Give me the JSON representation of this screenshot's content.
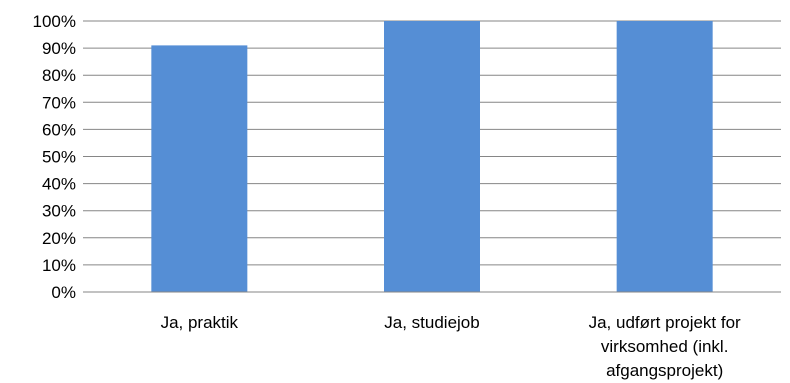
{
  "chart_data": {
    "type": "bar",
    "categories": [
      [
        "Ja, praktik"
      ],
      [
        "Ja, studiejob"
      ],
      [
        "Ja, udført projekt for",
        "virksomhed (inkl.",
        "afgangsprojekt)"
      ]
    ],
    "values": [
      91,
      100,
      100
    ],
    "ylim": [
      0,
      100
    ],
    "yticks": [
      "0%",
      "10%",
      "20%",
      "30%",
      "40%",
      "50%",
      "60%",
      "70%",
      "80%",
      "90%",
      "100%"
    ],
    "grid": true,
    "legend": "none",
    "bar_color": "#558ed5",
    "grid_color": "#868686",
    "axis_color": "#868686"
  }
}
